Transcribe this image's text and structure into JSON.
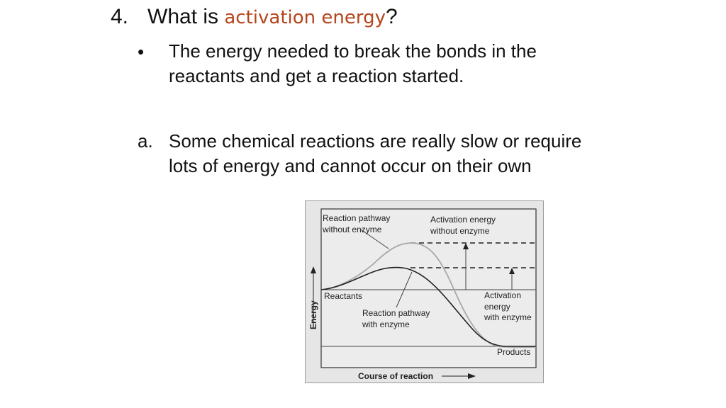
{
  "heading": {
    "number": "4.",
    "prefix": "What is ",
    "highlight": "activation energy",
    "suffix": "?"
  },
  "bullet": {
    "marker": "•",
    "text": "The energy needed to break the bonds in the reactants and get a reaction started."
  },
  "sub_point": {
    "marker": "a.",
    "text": "Some chemical reactions are really slow or require lots of energy and cannot occur on their own"
  },
  "diagram": {
    "labels": {
      "pathway_without_enzyme_1": "Reaction pathway",
      "pathway_without_enzyme_2": "without enzyme",
      "activation_without_1": "Activation energy",
      "activation_without_2": "without enzyme",
      "reactants": "Reactants",
      "pathway_with_enzyme_1": "Reaction pathway",
      "pathway_with_enzyme_2": "with enzyme",
      "activation_with_1": "Activation",
      "activation_with_2": "energy",
      "activation_with_3": "with enzyme",
      "products": "Products",
      "y_axis": "Energy",
      "x_axis": "Course of reaction"
    },
    "colors": {
      "background": "#e6e6e6",
      "curve_without_enzyme": "#a8a8a8",
      "curve_with_enzyme": "#222222",
      "accent_text": "#b5451b"
    }
  }
}
